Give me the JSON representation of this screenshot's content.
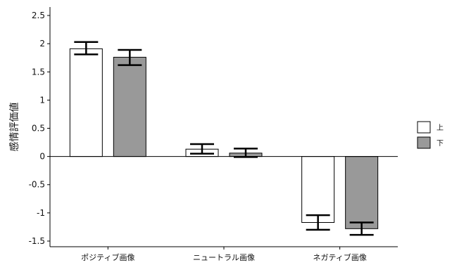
{
  "chart_data": {
    "type": "bar",
    "title": "",
    "xlabel": "",
    "ylabel": "感情評価値",
    "ylim": [
      -1.6,
      2.65
    ],
    "yticks": [
      2.5,
      2,
      1.5,
      1,
      0.5,
      0,
      -0.5,
      -1,
      -1.5
    ],
    "ytick_labels": [
      "2.5",
      "2",
      "1.5",
      "1",
      "0.5",
      "0",
      "-0.5",
      "-1",
      "-1.5"
    ],
    "categories": [
      "ポジティブ画像",
      "ニュートラル画像",
      "ネガティブ画像"
    ],
    "series": [
      {
        "name": "上",
        "color": "#ffffff",
        "values": [
          1.91,
          0.13,
          -1.17
        ],
        "error_low": [
          1.81,
          0.05,
          -1.3
        ],
        "error_high": [
          2.03,
          0.22,
          -1.04
        ]
      },
      {
        "name": "下",
        "color": "#999999",
        "values": [
          1.76,
          0.06,
          -1.28
        ],
        "error_low": [
          1.62,
          -0.01,
          -1.39
        ],
        "error_high": [
          1.89,
          0.14,
          -1.17
        ]
      }
    ],
    "legend_position": "right",
    "grid": false
  }
}
